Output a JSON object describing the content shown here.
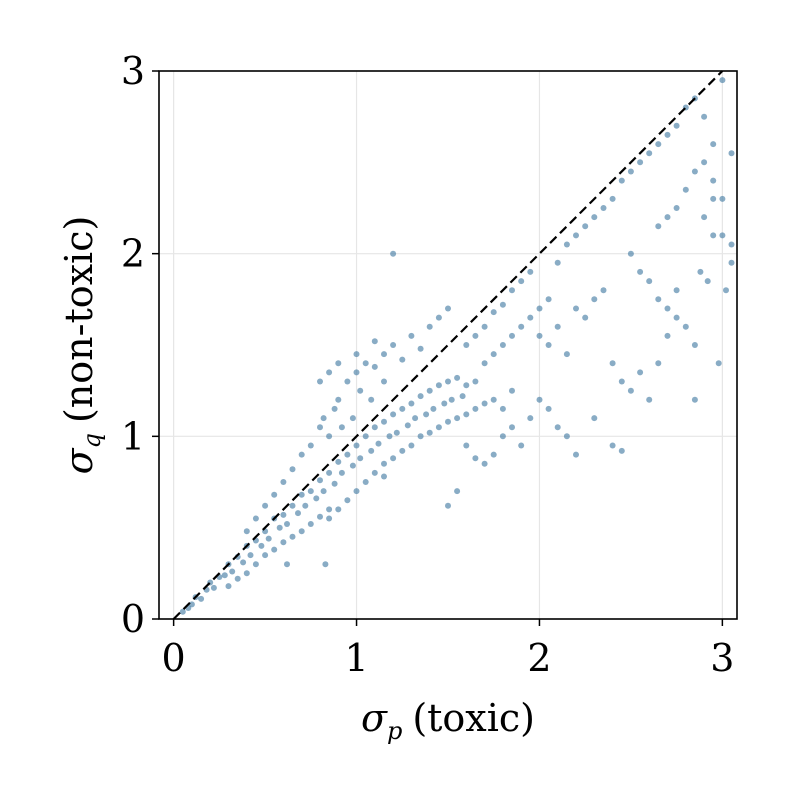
{
  "chart_data": {
    "type": "scatter",
    "xlabel": {
      "symbol": "σ",
      "subscript": "p",
      "text": "(toxic)"
    },
    "ylabel": {
      "symbol": "σ",
      "subscript": "q",
      "text": "(non-toxic)"
    },
    "xlim": [
      -0.08,
      3.08
    ],
    "ylim": [
      0,
      3
    ],
    "xticks": [
      0,
      1,
      2,
      3
    ],
    "yticks": [
      0,
      1,
      2,
      3
    ],
    "xtick_labels": [
      "0",
      "1",
      "2",
      "3"
    ],
    "ytick_labels": [
      "0",
      "1",
      "2",
      "3"
    ],
    "grid": true,
    "reference_line": {
      "style": "dashed",
      "color": "#000000",
      "x": [
        0,
        3.08
      ],
      "y": [
        0,
        3.08
      ]
    },
    "point_color": "#4a7fa6",
    "point_opacity": 0.65,
    "series": [
      {
        "points": [
          [
            0.05,
            0.04
          ],
          [
            0.08,
            0.06
          ],
          [
            0.1,
            0.08
          ],
          [
            0.12,
            0.12
          ],
          [
            0.15,
            0.11
          ],
          [
            0.18,
            0.16
          ],
          [
            0.2,
            0.2
          ],
          [
            0.22,
            0.17
          ],
          [
            0.25,
            0.23
          ],
          [
            0.28,
            0.24
          ],
          [
            0.3,
            0.3
          ],
          [
            0.32,
            0.26
          ],
          [
            0.35,
            0.34
          ],
          [
            0.38,
            0.31
          ],
          [
            0.4,
            0.4
          ],
          [
            0.42,
            0.35
          ],
          [
            0.45,
            0.43
          ],
          [
            0.48,
            0.4
          ],
          [
            0.5,
            0.48
          ],
          [
            0.52,
            0.44
          ],
          [
            0.55,
            0.55
          ],
          [
            0.58,
            0.5
          ],
          [
            0.6,
            0.57
          ],
          [
            0.62,
            0.52
          ],
          [
            0.65,
            0.62
          ],
          [
            0.68,
            0.58
          ],
          [
            0.7,
            0.68
          ],
          [
            0.72,
            0.62
          ],
          [
            0.75,
            0.7
          ],
          [
            0.78,
            0.66
          ],
          [
            0.8,
            0.76
          ],
          [
            0.82,
            0.7
          ],
          [
            0.85,
            0.8
          ],
          [
            0.88,
            0.74
          ],
          [
            0.9,
            0.86
          ],
          [
            0.92,
            0.8
          ],
          [
            0.95,
            0.9
          ],
          [
            0.98,
            0.84
          ],
          [
            1.0,
            0.95
          ],
          [
            1.02,
            0.88
          ],
          [
            1.05,
            1.0
          ],
          [
            1.08,
            0.92
          ],
          [
            1.1,
            1.05
          ],
          [
            1.12,
            0.96
          ],
          [
            1.15,
            1.08
          ],
          [
            1.18,
            1.0
          ],
          [
            1.2,
            1.12
          ],
          [
            1.22,
            1.02
          ],
          [
            1.25,
            1.15
          ],
          [
            1.28,
            1.06
          ],
          [
            1.3,
            1.18
          ],
          [
            1.32,
            1.1
          ],
          [
            1.35,
            1.22
          ],
          [
            1.38,
            1.12
          ],
          [
            1.4,
            1.25
          ],
          [
            1.42,
            1.15
          ],
          [
            1.45,
            1.28
          ],
          [
            1.48,
            1.18
          ],
          [
            1.5,
            1.3
          ],
          [
            1.52,
            1.2
          ],
          [
            1.55,
            1.32
          ],
          [
            1.58,
            1.22
          ],
          [
            1.6,
            1.28
          ],
          [
            1.65,
            1.3
          ],
          [
            0.7,
            0.9
          ],
          [
            0.75,
            0.95
          ],
          [
            0.8,
            1.05
          ],
          [
            0.82,
            1.1
          ],
          [
            0.85,
            1.0
          ],
          [
            0.88,
            1.15
          ],
          [
            0.9,
            1.2
          ],
          [
            0.92,
            1.05
          ],
          [
            0.95,
            1.3
          ],
          [
            0.98,
            1.1
          ],
          [
            1.0,
            1.35
          ],
          [
            1.02,
            1.25
          ],
          [
            1.05,
            1.4
          ],
          [
            1.08,
            1.2
          ],
          [
            1.1,
            1.38
          ],
          [
            1.15,
            1.3
          ],
          [
            0.6,
            0.75
          ],
          [
            0.65,
            0.82
          ],
          [
            0.55,
            0.68
          ],
          [
            0.5,
            0.62
          ],
          [
            0.45,
            0.55
          ],
          [
            0.4,
            0.48
          ],
          [
            1.1,
            0.8
          ],
          [
            1.15,
            0.85
          ],
          [
            1.2,
            0.88
          ],
          [
            1.25,
            0.92
          ],
          [
            1.3,
            0.95
          ],
          [
            1.35,
            1.0
          ],
          [
            1.4,
            1.02
          ],
          [
            1.45,
            1.05
          ],
          [
            1.5,
            1.08
          ],
          [
            1.55,
            1.1
          ],
          [
            1.6,
            1.12
          ],
          [
            1.65,
            1.15
          ],
          [
            1.7,
            1.18
          ],
          [
            1.75,
            1.2
          ],
          [
            1.8,
            1.15
          ],
          [
            1.85,
            1.25
          ],
          [
            1.7,
            1.4
          ],
          [
            1.75,
            1.45
          ],
          [
            1.8,
            1.5
          ],
          [
            1.85,
            1.55
          ],
          [
            1.9,
            1.6
          ],
          [
            1.95,
            1.65
          ],
          [
            2.0,
            1.7
          ],
          [
            2.05,
            1.75
          ],
          [
            1.6,
            1.5
          ],
          [
            1.65,
            1.55
          ],
          [
            1.7,
            1.6
          ],
          [
            1.75,
            1.68
          ],
          [
            1.8,
            1.72
          ],
          [
            1.85,
            1.8
          ],
          [
            1.9,
            1.85
          ],
          [
            1.95,
            1.9
          ],
          [
            2.0,
            1.55
          ],
          [
            2.05,
            1.5
          ],
          [
            2.1,
            1.6
          ],
          [
            2.15,
            1.45
          ],
          [
            2.2,
            1.7
          ],
          [
            2.25,
            1.65
          ],
          [
            2.3,
            1.75
          ],
          [
            2.35,
            1.8
          ],
          [
            2.1,
            1.95
          ],
          [
            2.15,
            2.05
          ],
          [
            2.2,
            2.1
          ],
          [
            2.25,
            2.15
          ],
          [
            2.3,
            2.2
          ],
          [
            2.35,
            2.25
          ],
          [
            2.4,
            2.3
          ],
          [
            2.45,
            2.4
          ],
          [
            2.5,
            2.45
          ],
          [
            2.55,
            2.5
          ],
          [
            2.6,
            2.55
          ],
          [
            2.65,
            2.6
          ],
          [
            2.7,
            2.65
          ],
          [
            2.75,
            2.7
          ],
          [
            2.8,
            2.8
          ],
          [
            2.85,
            2.85
          ],
          [
            2.9,
            2.75
          ],
          [
            2.95,
            2.6
          ],
          [
            3.0,
            2.95
          ],
          [
            3.05,
            2.55
          ],
          [
            2.95,
            2.3
          ],
          [
            3.0,
            2.1
          ],
          [
            3.05,
            1.95
          ],
          [
            3.02,
            1.8
          ],
          [
            2.5,
            2.0
          ],
          [
            2.55,
            1.9
          ],
          [
            2.6,
            1.85
          ],
          [
            2.65,
            1.75
          ],
          [
            2.7,
            1.7
          ],
          [
            2.75,
            1.8
          ],
          [
            2.8,
            1.6
          ],
          [
            2.85,
            1.5
          ],
          [
            2.4,
            1.4
          ],
          [
            2.45,
            1.3
          ],
          [
            2.5,
            1.25
          ],
          [
            2.55,
            1.35
          ],
          [
            2.6,
            1.2
          ],
          [
            2.65,
            1.4
          ],
          [
            2.7,
            1.55
          ],
          [
            2.75,
            1.65
          ],
          [
            2.0,
            1.2
          ],
          [
            2.05,
            1.15
          ],
          [
            2.1,
            1.05
          ],
          [
            2.15,
            1.0
          ],
          [
            2.2,
            0.9
          ],
          [
            2.3,
            1.1
          ],
          [
            2.4,
            0.95
          ],
          [
            2.45,
            0.92
          ],
          [
            1.8,
            1.0
          ],
          [
            1.85,
            1.05
          ],
          [
            1.9,
            0.95
          ],
          [
            1.95,
            1.1
          ],
          [
            1.75,
            0.9
          ],
          [
            1.7,
            0.85
          ],
          [
            1.65,
            0.88
          ],
          [
            1.6,
            0.95
          ],
          [
            1.15,
            1.45
          ],
          [
            1.2,
            1.5
          ],
          [
            1.25,
            1.42
          ],
          [
            1.3,
            1.55
          ],
          [
            1.35,
            1.48
          ],
          [
            1.4,
            1.6
          ],
          [
            1.45,
            1.65
          ],
          [
            1.5,
            1.7
          ],
          [
            1.2,
            2.0
          ],
          [
            1.1,
            1.52
          ],
          [
            1.0,
            1.45
          ],
          [
            0.9,
            1.4
          ],
          [
            0.85,
            1.35
          ],
          [
            0.8,
            1.3
          ],
          [
            0.85,
            0.55
          ],
          [
            0.9,
            0.6
          ],
          [
            0.95,
            0.65
          ],
          [
            1.0,
            0.7
          ],
          [
            1.05,
            0.75
          ],
          [
            1.15,
            0.78
          ],
          [
            1.5,
            0.62
          ],
          [
            1.55,
            0.7
          ],
          [
            0.3,
            0.18
          ],
          [
            0.35,
            0.22
          ],
          [
            0.4,
            0.25
          ],
          [
            0.45,
            0.3
          ],
          [
            0.5,
            0.35
          ],
          [
            0.55,
            0.38
          ],
          [
            0.6,
            0.42
          ],
          [
            0.65,
            0.45
          ],
          [
            0.7,
            0.48
          ],
          [
            0.75,
            0.52
          ],
          [
            0.8,
            0.56
          ],
          [
            0.85,
            0.6
          ],
          [
            0.62,
            0.3
          ],
          [
            0.83,
            0.3
          ],
          [
            2.85,
            2.45
          ],
          [
            2.9,
            2.5
          ],
          [
            2.95,
            2.4
          ],
          [
            3.0,
            2.3
          ],
          [
            2.8,
            2.35
          ],
          [
            2.75,
            2.25
          ],
          [
            2.7,
            2.2
          ],
          [
            2.65,
            2.15
          ],
          [
            2.9,
            2.2
          ],
          [
            2.95,
            2.1
          ],
          [
            3.05,
            2.05
          ],
          [
            2.88,
            1.9
          ],
          [
            2.92,
            1.85
          ],
          [
            2.98,
            1.4
          ],
          [
            2.85,
            1.2
          ]
        ]
      }
    ]
  }
}
